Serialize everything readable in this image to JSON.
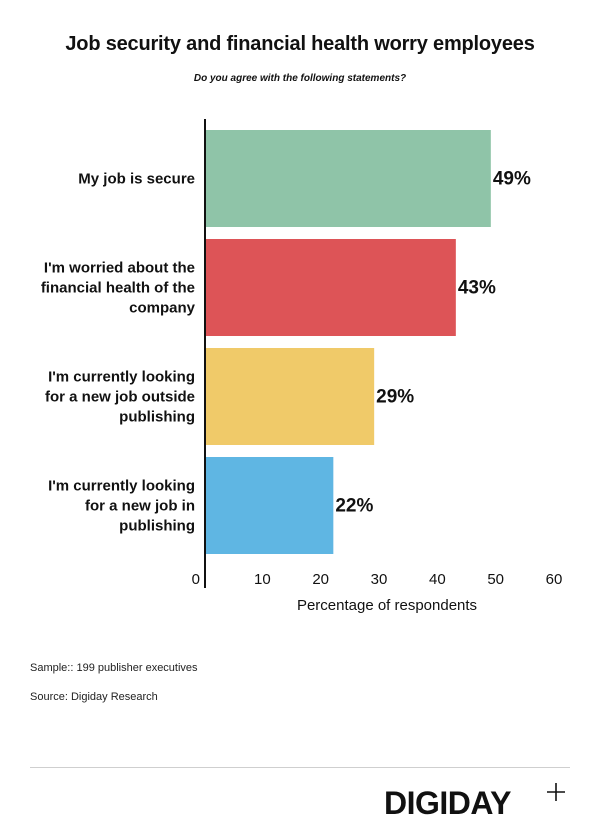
{
  "chart_data": {
    "type": "bar",
    "orientation": "horizontal",
    "title": "Job security and financial health worry employees",
    "subtitle": "Do you agree with the following statements?",
    "categories": [
      [
        "My job is secure"
      ],
      [
        "I'm worried about the",
        "financial health of the",
        "company"
      ],
      [
        "I'm currently looking",
        "for a new job outside",
        "publishing"
      ],
      [
        "I'm currently looking",
        "for a new job in",
        "publishing"
      ]
    ],
    "values": [
      49,
      43,
      29,
      22
    ],
    "value_labels": [
      "49%",
      "43%",
      "29%",
      "22%"
    ],
    "colors": [
      "#8fc4a8",
      "#dd5457",
      "#f0ca69",
      "#5fb6e3"
    ],
    "xlabel": "Percentage of respondents",
    "xlim": [
      0,
      60
    ],
    "xticks": [
      0,
      10,
      20,
      30,
      40,
      50,
      60
    ],
    "grid": false,
    "legend": "none"
  },
  "notes": {
    "sample": "Sample:: 199 publisher executives",
    "source": "Source: Digiday Research"
  },
  "brand": {
    "logo_text": "DIGIDAY",
    "logo_icon": "plus-icon"
  }
}
